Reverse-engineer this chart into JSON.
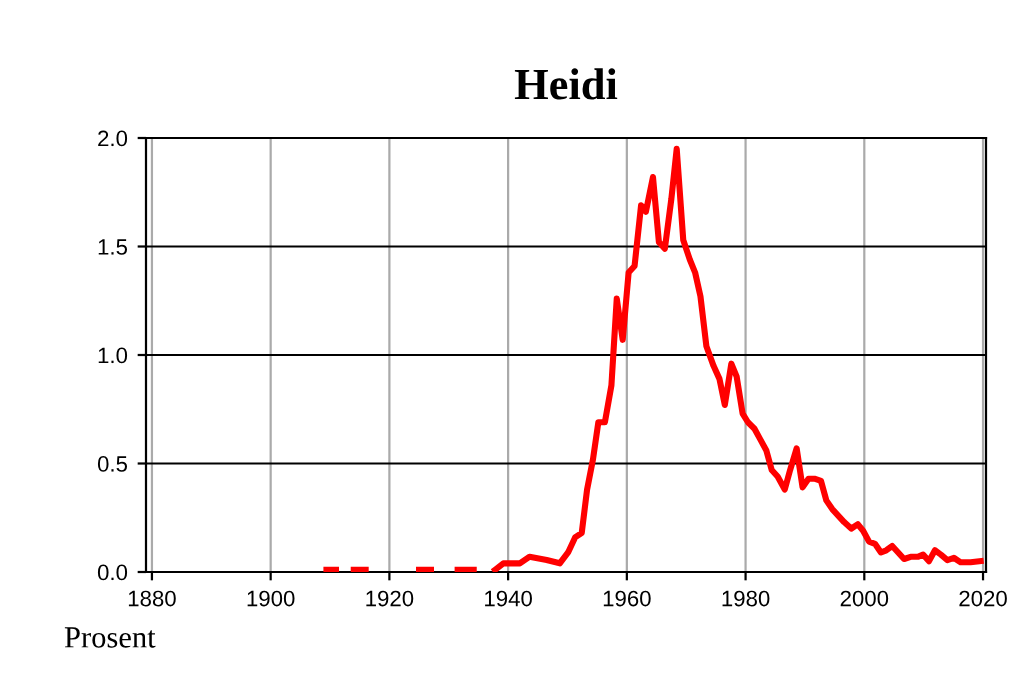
{
  "chart_data": {
    "type": "line",
    "title": "Heidi",
    "ylabel": "Prosent",
    "series": [
      {
        "color": "#ff0000",
        "x": [
          1909.4,
          1911,
          1912,
          1914,
          1916,
          1917,
          1925,
          1927,
          1928,
          1931.5,
          1934.2,
          1935,
          1937.8,
          1939.2,
          1942,
          1943.6,
          1946.5,
          1948.7,
          1950.1,
          1951.3,
          1952.4,
          1953.3,
          1954.3,
          1955.2,
          1956.3,
          1957.4,
          1958.3,
          1959.3,
          1960.3,
          1961.3,
          1962.4,
          1963.2,
          1964.4,
          1965.4,
          1966.4,
          1967.5,
          1968.4,
          1969.5,
          1970.6,
          1971.5,
          1972.4,
          1973.4,
          1974.6,
          1975.6,
          1976.5,
          1977.6,
          1978.5,
          1979.5,
          1980.4,
          1981.5,
          1982.5,
          1983.5,
          1984.4,
          1985.4,
          1986.6,
          1987.5,
          1988.6,
          1989.6,
          1990.6,
          1991.6,
          1992.7,
          1993.6,
          1994.6,
          1995.6,
          1996.6,
          1997.8,
          1998.9,
          1999.8,
          2000.8,
          2001.8,
          2002.8,
          2003.7,
          2004.7,
          2005.7,
          2006.7,
          2007.8,
          2009,
          2009.9,
          2010.9,
          2011.9,
          2012.9,
          2014,
          2015.1,
          2016.2,
          2017.9,
          2019.6
        ],
        "values": [
          0.01,
          0.01,
          null,
          0.01,
          0.01,
          null,
          0.01,
          0.01,
          null,
          0.01,
          0.01,
          null,
          0.01,
          0.04,
          0.04,
          0.07,
          0.055,
          0.04,
          0.09,
          0.16,
          0.18,
          0.38,
          0.52,
          0.69,
          0.69,
          0.86,
          1.26,
          1.07,
          1.38,
          1.41,
          1.69,
          1.66,
          1.82,
          1.52,
          1.49,
          1.72,
          1.95,
          1.53,
          1.44,
          1.38,
          1.27,
          1.04,
          0.95,
          0.89,
          0.77,
          0.96,
          0.9,
          0.73,
          0.69,
          0.66,
          0.61,
          0.56,
          0.47,
          0.44,
          0.38,
          0.47,
          0.57,
          0.39,
          0.43,
          0.43,
          0.42,
          0.33,
          0.29,
          0.26,
          0.23,
          0.2,
          0.22,
          0.19,
          0.14,
          0.13,
          0.09,
          0.1,
          0.12,
          0.09,
          0.06,
          0.07,
          0.07,
          0.08,
          0.05,
          0.1,
          0.08,
          0.055,
          0.065,
          0.045,
          0.045,
          0.05
        ]
      }
    ],
    "xlim": [
      1879,
      2020.5
    ],
    "ylim": [
      0,
      2.0
    ],
    "xticks": [
      1880,
      1900,
      1920,
      1940,
      1960,
      1980,
      2000,
      2020
    ],
    "yticks": [
      {
        "value": 0,
        "label": "0.0"
      },
      {
        "value": 0.5,
        "label": "0.5"
      },
      {
        "value": 1,
        "label": "1.0"
      },
      {
        "value": 1.5,
        "label": "1.5"
      },
      {
        "value": 2,
        "label": "2.0"
      }
    ],
    "grid": true,
    "line_style": "solid",
    "marker": "none"
  }
}
